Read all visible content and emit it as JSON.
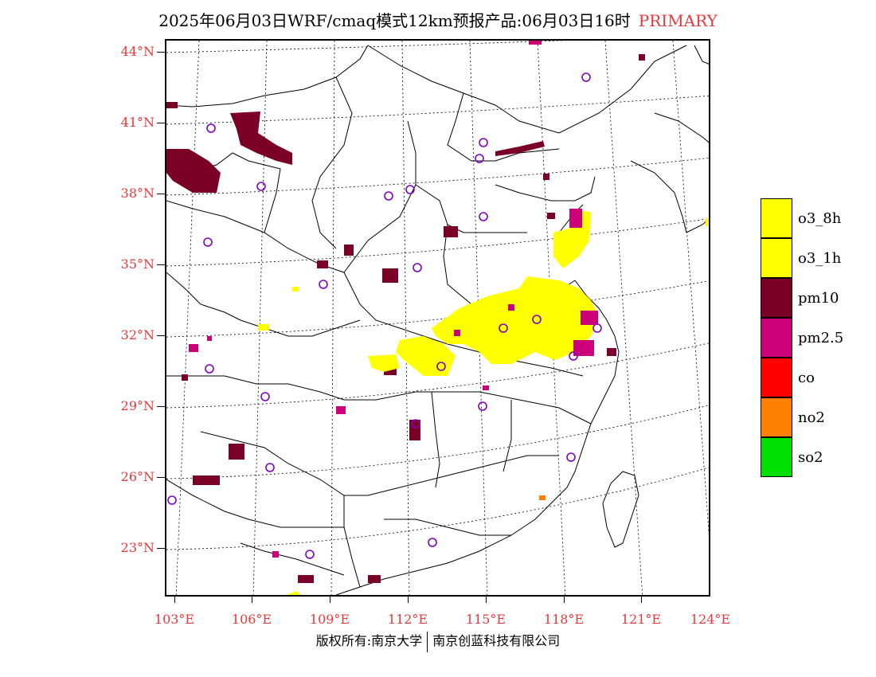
{
  "title": {
    "main": "2025年06月03日WRF/cmaq模式12km预报产品:06月03日16时",
    "tag": "PRIMARY"
  },
  "colors": {
    "accent_red": "#e8383a",
    "o3_8h": "#ffff00",
    "o3_1h": "#ffff00",
    "pm10": "#7a0028",
    "pm25": "#cc0078",
    "co": "#ff0000",
    "no2": "#ff8000",
    "so2": "#00e000",
    "station_circle": "#8000c0"
  },
  "axes": {
    "lat_labels": [
      "44°N",
      "41°N",
      "38°N",
      "35°N",
      "32°N",
      "29°N",
      "26°N",
      "23°N"
    ],
    "lon_labels": [
      "103°E",
      "106°E",
      "109°E",
      "112°E",
      "115°E",
      "118°E",
      "121°E",
      "124°E"
    ]
  },
  "legend": {
    "items": [
      {
        "label": "o3_8h",
        "color": "#ffff00"
      },
      {
        "label": "o3_1h",
        "color": "#ffff00"
      },
      {
        "label": "pm10",
        "color": "#7a0028"
      },
      {
        "label": "pm2.5",
        "color": "#cc0078"
      },
      {
        "label": "co",
        "color": "#ff0000"
      },
      {
        "label": "no2",
        "color": "#ff8000"
      },
      {
        "label": "so2",
        "color": "#00e000"
      }
    ]
  },
  "footer": {
    "left": "版权所有:南京大学",
    "right": "南京创蓝科技有限公司"
  }
}
